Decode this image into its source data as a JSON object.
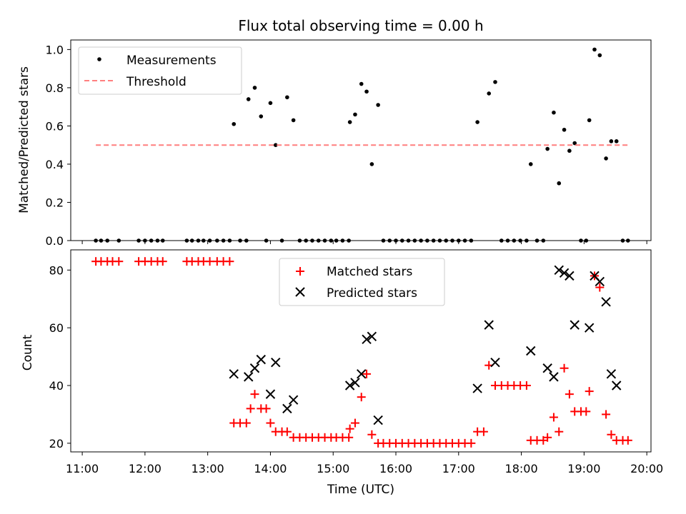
{
  "chart_data": [
    {
      "type": "scatter",
      "title": "Flux total observing time = 0.00 h",
      "xlabel": "",
      "ylabel": "Matched/Predicted stars",
      "xlim": [
        "10:49",
        "20:04"
      ],
      "ylim": [
        0,
        1.05
      ],
      "xticks": [
        "11:00",
        "12:00",
        "13:00",
        "14:00",
        "15:00",
        "16:00",
        "17:00",
        "18:00",
        "19:00",
        "20:00"
      ],
      "yticks": [
        "0.0",
        "0.2",
        "0.4",
        "0.6",
        "0.8",
        "1.0"
      ],
      "legend_position": "upper-left",
      "grid": false,
      "series": [
        {
          "name": "Measurements",
          "color": "#000000",
          "marker": "dot",
          "points": [
            [
              "11:13",
              0
            ],
            [
              "11:18",
              0
            ],
            [
              "11:24",
              0
            ],
            [
              "11:35",
              0
            ],
            [
              "11:54",
              0
            ],
            [
              "12:00",
              0
            ],
            [
              "12:06",
              0
            ],
            [
              "12:12",
              0
            ],
            [
              "12:17",
              0
            ],
            [
              "12:40",
              0
            ],
            [
              "12:45",
              0
            ],
            [
              "12:51",
              0
            ],
            [
              "12:56",
              0
            ],
            [
              "13:02",
              0
            ],
            [
              "13:09",
              0
            ],
            [
              "13:15",
              0
            ],
            [
              "13:21",
              0
            ],
            [
              "13:25",
              0.61
            ],
            [
              "13:31",
              0
            ],
            [
              "13:37",
              0
            ],
            [
              "13:39",
              0.74
            ],
            [
              "13:45",
              0.8
            ],
            [
              "13:51",
              0.65
            ],
            [
              "13:56",
              0
            ],
            [
              "14:00",
              0.72
            ],
            [
              "14:05",
              0.5
            ],
            [
              "14:11",
              0
            ],
            [
              "14:16",
              0.75
            ],
            [
              "14:22",
              0.63
            ],
            [
              "14:28",
              0
            ],
            [
              "14:34",
              0
            ],
            [
              "14:40",
              0
            ],
            [
              "14:46",
              0
            ],
            [
              "14:52",
              0
            ],
            [
              "14:58",
              0
            ],
            [
              "15:03",
              0
            ],
            [
              "15:09",
              0
            ],
            [
              "15:15",
              0
            ],
            [
              "15:16",
              0.62
            ],
            [
              "15:21",
              0.66
            ],
            [
              "15:27",
              0.82
            ],
            [
              "15:32",
              0.78
            ],
            [
              "15:37",
              0.4
            ],
            [
              "15:43",
              0.71
            ],
            [
              "15:48",
              0
            ],
            [
              "15:54",
              0
            ],
            [
              "16:00",
              0
            ],
            [
              "16:06",
              0
            ],
            [
              "16:12",
              0
            ],
            [
              "16:18",
              0
            ],
            [
              "16:24",
              0
            ],
            [
              "16:30",
              0
            ],
            [
              "16:36",
              0
            ],
            [
              "16:42",
              0
            ],
            [
              "16:48",
              0
            ],
            [
              "16:54",
              0
            ],
            [
              "17:00",
              0
            ],
            [
              "17:06",
              0
            ],
            [
              "17:12",
              0
            ],
            [
              "17:18",
              0.62
            ],
            [
              "17:29",
              0.77
            ],
            [
              "17:35",
              0.83
            ],
            [
              "17:41",
              0
            ],
            [
              "17:47",
              0
            ],
            [
              "17:53",
              0
            ],
            [
              "17:59",
              0
            ],
            [
              "18:05",
              0
            ],
            [
              "18:09",
              0.4
            ],
            [
              "18:15",
              0
            ],
            [
              "18:21",
              0
            ],
            [
              "18:25",
              0.48
            ],
            [
              "18:31",
              0.67
            ],
            [
              "18:36",
              0.3
            ],
            [
              "18:41",
              0.58
            ],
            [
              "18:46",
              0.47
            ],
            [
              "18:51",
              0.51
            ],
            [
              "18:57",
              0
            ],
            [
              "19:02",
              0
            ],
            [
              "19:05",
              0.63
            ],
            [
              "19:10",
              1.0
            ],
            [
              "19:15",
              0.97
            ],
            [
              "19:21",
              0.43
            ],
            [
              "19:26",
              0.52
            ],
            [
              "19:31",
              0.52
            ],
            [
              "19:37",
              0
            ],
            [
              "19:42",
              0
            ]
          ]
        },
        {
          "name": "Threshold",
          "color": "#ff7f7f",
          "style": "dashed",
          "points": [
            [
              "11:13",
              0.5
            ],
            [
              "19:42",
              0.5
            ]
          ]
        }
      ]
    },
    {
      "type": "scatter",
      "title": "",
      "xlabel": "Time (UTC)",
      "ylabel": "Count",
      "xlim": [
        "10:49",
        "20:04"
      ],
      "ylim": [
        17,
        87
      ],
      "xticks": [
        "11:00",
        "12:00",
        "13:00",
        "14:00",
        "15:00",
        "16:00",
        "17:00",
        "18:00",
        "19:00",
        "20:00"
      ],
      "yticks": [
        "20",
        "40",
        "60",
        "80"
      ],
      "legend_position": "upper-center",
      "grid": false,
      "series": [
        {
          "name": "Matched stars",
          "color": "#ff0000",
          "marker": "plus",
          "points": [
            [
              "11:13",
              83
            ],
            [
              "11:18",
              83
            ],
            [
              "11:24",
              83
            ],
            [
              "11:29",
              83
            ],
            [
              "11:35",
              83
            ],
            [
              "11:54",
              83
            ],
            [
              "12:00",
              83
            ],
            [
              "12:06",
              83
            ],
            [
              "12:12",
              83
            ],
            [
              "12:17",
              83
            ],
            [
              "12:40",
              83
            ],
            [
              "12:45",
              83
            ],
            [
              "12:51",
              83
            ],
            [
              "12:56",
              83
            ],
            [
              "13:02",
              83
            ],
            [
              "13:09",
              83
            ],
            [
              "13:15",
              83
            ],
            [
              "13:21",
              83
            ],
            [
              "13:25",
              27
            ],
            [
              "13:31",
              27
            ],
            [
              "13:37",
              27
            ],
            [
              "13:41",
              32
            ],
            [
              "13:45",
              37
            ],
            [
              "13:51",
              32
            ],
            [
              "13:56",
              32
            ],
            [
              "14:00",
              27
            ],
            [
              "14:05",
              24
            ],
            [
              "14:11",
              24
            ],
            [
              "14:16",
              24
            ],
            [
              "14:22",
              22
            ],
            [
              "14:28",
              22
            ],
            [
              "14:34",
              22
            ],
            [
              "14:40",
              22
            ],
            [
              "14:46",
              22
            ],
            [
              "14:52",
              22
            ],
            [
              "14:58",
              22
            ],
            [
              "15:03",
              22
            ],
            [
              "15:09",
              22
            ],
            [
              "15:15",
              22
            ],
            [
              "15:16",
              25
            ],
            [
              "15:21",
              27
            ],
            [
              "15:27",
              36
            ],
            [
              "15:32",
              44
            ],
            [
              "15:37",
              23
            ],
            [
              "15:43",
              20
            ],
            [
              "15:48",
              20
            ],
            [
              "15:54",
              20
            ],
            [
              "16:00",
              20
            ],
            [
              "16:06",
              20
            ],
            [
              "16:12",
              20
            ],
            [
              "16:18",
              20
            ],
            [
              "16:24",
              20
            ],
            [
              "16:30",
              20
            ],
            [
              "16:36",
              20
            ],
            [
              "16:42",
              20
            ],
            [
              "16:48",
              20
            ],
            [
              "16:54",
              20
            ],
            [
              "17:00",
              20
            ],
            [
              "17:06",
              20
            ],
            [
              "17:12",
              20
            ],
            [
              "17:18",
              24
            ],
            [
              "17:24",
              24
            ],
            [
              "17:29",
              47
            ],
            [
              "17:35",
              40
            ],
            [
              "17:41",
              40
            ],
            [
              "17:47",
              40
            ],
            [
              "17:53",
              40
            ],
            [
              "17:59",
              40
            ],
            [
              "18:05",
              40
            ],
            [
              "18:09",
              21
            ],
            [
              "18:15",
              21
            ],
            [
              "18:21",
              21
            ],
            [
              "18:25",
              22
            ],
            [
              "18:31",
              29
            ],
            [
              "18:36",
              24
            ],
            [
              "18:41",
              46
            ],
            [
              "18:46",
              37
            ],
            [
              "18:51",
              31
            ],
            [
              "18:57",
              31
            ],
            [
              "19:02",
              31
            ],
            [
              "19:05",
              38
            ],
            [
              "19:10",
              78
            ],
            [
              "19:15",
              74
            ],
            [
              "19:21",
              30
            ],
            [
              "19:26",
              23
            ],
            [
              "19:31",
              21
            ],
            [
              "19:37",
              21
            ],
            [
              "19:42",
              21
            ]
          ]
        },
        {
          "name": "Predicted stars",
          "color": "#000000",
          "marker": "x",
          "points": [
            [
              "13:25",
              44
            ],
            [
              "13:39",
              43
            ],
            [
              "13:45",
              46
            ],
            [
              "13:51",
              49
            ],
            [
              "14:00",
              37
            ],
            [
              "14:05",
              48
            ],
            [
              "14:16",
              32
            ],
            [
              "14:22",
              35
            ],
            [
              "15:16",
              40
            ],
            [
              "15:21",
              41
            ],
            [
              "15:27",
              44
            ],
            [
              "15:32",
              56
            ],
            [
              "15:37",
              57
            ],
            [
              "15:43",
              28
            ],
            [
              "17:18",
              39
            ],
            [
              "17:29",
              61
            ],
            [
              "17:35",
              48
            ],
            [
              "18:09",
              52
            ],
            [
              "18:25",
              46
            ],
            [
              "18:31",
              43
            ],
            [
              "18:36",
              80
            ],
            [
              "18:41",
              79
            ],
            [
              "18:46",
              78
            ],
            [
              "18:51",
              61
            ],
            [
              "19:05",
              60
            ],
            [
              "19:10",
              78
            ],
            [
              "19:15",
              76
            ],
            [
              "19:21",
              69
            ],
            [
              "19:26",
              44
            ],
            [
              "19:31",
              40
            ]
          ]
        }
      ]
    }
  ]
}
